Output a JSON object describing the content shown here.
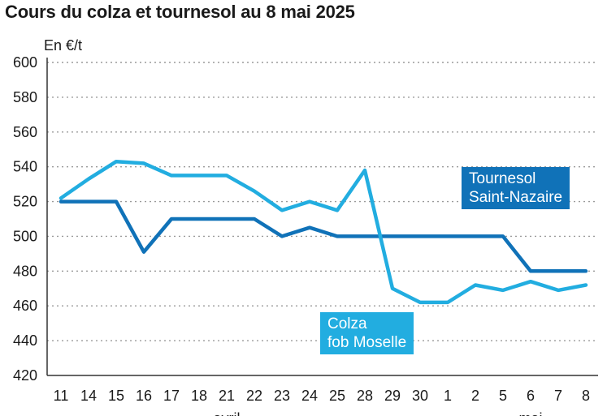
{
  "title": "Cours du colza et tournesol au 8 mai 2025",
  "unit_label": "En €/t",
  "colors": {
    "tournesol": "#1072b8",
    "colza": "#22ade0",
    "grid": "#9a9a9a",
    "axis": "#333333"
  },
  "labels": {
    "tournesol": [
      "Tournesol",
      "Saint-Nazaire"
    ],
    "colza": [
      "Colza",
      "fob Moselle"
    ]
  },
  "chart_data": {
    "type": "line",
    "title": "Cours du colza et tournesol au 8 mai 2025",
    "ylabel": "En €/t",
    "ylim": [
      420,
      600
    ],
    "yticks": [
      420,
      440,
      460,
      480,
      500,
      520,
      540,
      560,
      580,
      600
    ],
    "grid": "horizontal dotted",
    "categories": [
      "11",
      "14",
      "15",
      "16",
      "17",
      "18",
      "21",
      "22",
      "23",
      "24",
      "25",
      "28",
      "29",
      "30",
      "1",
      "2",
      "5",
      "6",
      "7",
      "8"
    ],
    "month_labels": [
      {
        "text": "avril",
        "at": "21"
      },
      {
        "text": "mai",
        "at": "6"
      }
    ],
    "series": [
      {
        "name": "Tournesol Saint-Nazaire",
        "values": [
          520,
          520,
          520,
          491,
          510,
          510,
          510,
          510,
          500,
          505,
          500,
          500,
          500,
          500,
          500,
          500,
          500,
          480,
          480,
          480
        ]
      },
      {
        "name": "Colza fob Moselle",
        "values": [
          522,
          533,
          543,
          542,
          535,
          535,
          535,
          526,
          515,
          520,
          515,
          538,
          470,
          462,
          462,
          472,
          469,
          474,
          469,
          472
        ]
      }
    ]
  }
}
